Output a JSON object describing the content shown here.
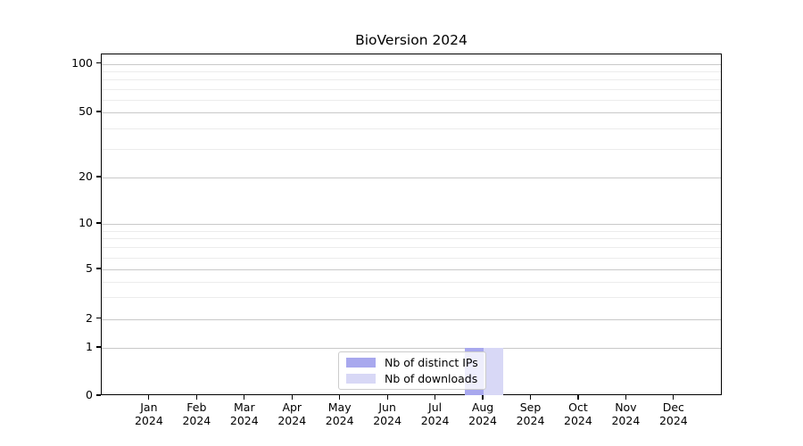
{
  "chart_data": {
    "type": "bar",
    "title": "BioVersion 2024",
    "categories": [
      "Jan 2024",
      "Feb 2024",
      "Mar 2024",
      "Apr 2024",
      "May 2024",
      "Jun 2024",
      "Jul 2024",
      "Aug 2024",
      "Sep 2024",
      "Oct 2024",
      "Nov 2024",
      "Dec 2024"
    ],
    "series": [
      {
        "name": "Nb of distinct IPs",
        "color": "#a8a8ee",
        "values": [
          0,
          0,
          0,
          0,
          0,
          0,
          0,
          1,
          0,
          0,
          0,
          0
        ]
      },
      {
        "name": "Nb of downloads",
        "color": "#d8d8f6",
        "values": [
          0,
          0,
          0,
          0,
          0,
          0,
          0,
          1,
          0,
          0,
          0,
          0
        ]
      }
    ],
    "xlabel": "",
    "ylabel": "",
    "y_axis": {
      "scale": "log-like",
      "major_ticks": [
        0,
        1,
        2,
        5,
        10,
        20,
        50,
        100
      ],
      "minor_gridlines": [
        3,
        4,
        6,
        7,
        8,
        9,
        30,
        40,
        60,
        70,
        80,
        90
      ],
      "range": [
        0,
        100
      ]
    },
    "grid": true,
    "legend_position": "inside-bottom-center"
  },
  "colors": {
    "major_grid": "#c9c9c9",
    "minor_grid": "#ececec",
    "axis": "#000000",
    "background": "#ffffff"
  }
}
